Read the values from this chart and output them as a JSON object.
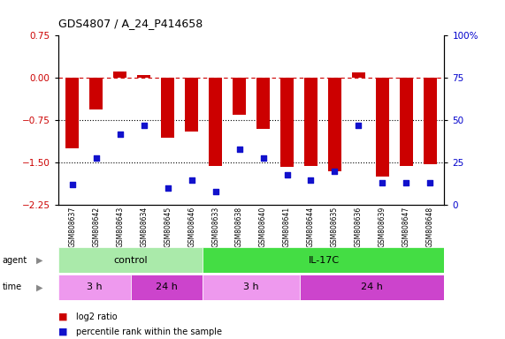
{
  "title": "GDS4807 / A_24_P414658",
  "samples": [
    "GSM808637",
    "GSM808642",
    "GSM808643",
    "GSM808634",
    "GSM808645",
    "GSM808646",
    "GSM808633",
    "GSM808638",
    "GSM808640",
    "GSM808641",
    "GSM808644",
    "GSM808635",
    "GSM808636",
    "GSM808639",
    "GSM808647",
    "GSM808648"
  ],
  "log2_ratio": [
    -1.25,
    -0.55,
    0.12,
    0.05,
    -1.05,
    -0.95,
    -1.55,
    -0.65,
    -0.9,
    -1.58,
    -1.55,
    -1.65,
    0.1,
    -1.75,
    -1.55,
    -1.53
  ],
  "percentile": [
    12,
    28,
    42,
    47,
    10,
    15,
    8,
    33,
    28,
    18,
    15,
    20,
    47,
    13,
    13,
    13
  ],
  "bar_color": "#cc0000",
  "dot_color": "#1111cc",
  "ylim_left": [
    -2.25,
    0.75
  ],
  "ylim_right": [
    0,
    100
  ],
  "yticks_left": [
    0.75,
    0.0,
    -0.75,
    -1.5,
    -2.25
  ],
  "yticks_right": [
    100,
    75,
    50,
    25,
    0
  ],
  "agent_groups": [
    {
      "label": "control",
      "start": 0,
      "end": 6,
      "color": "#aaeaaa"
    },
    {
      "label": "IL-17C",
      "start": 6,
      "end": 16,
      "color": "#44dd44"
    }
  ],
  "time_groups": [
    {
      "label": "3 h",
      "start": 0,
      "end": 3,
      "color": "#ee99ee"
    },
    {
      "label": "24 h",
      "start": 3,
      "end": 6,
      "color": "#cc44cc"
    },
    {
      "label": "3 h",
      "start": 6,
      "end": 10,
      "color": "#ee99ee"
    },
    {
      "label": "24 h",
      "start": 10,
      "end": 16,
      "color": "#cc44cc"
    }
  ],
  "background_color": "#ffffff",
  "sample_box_color": "#cccccc",
  "bar_width": 0.55
}
